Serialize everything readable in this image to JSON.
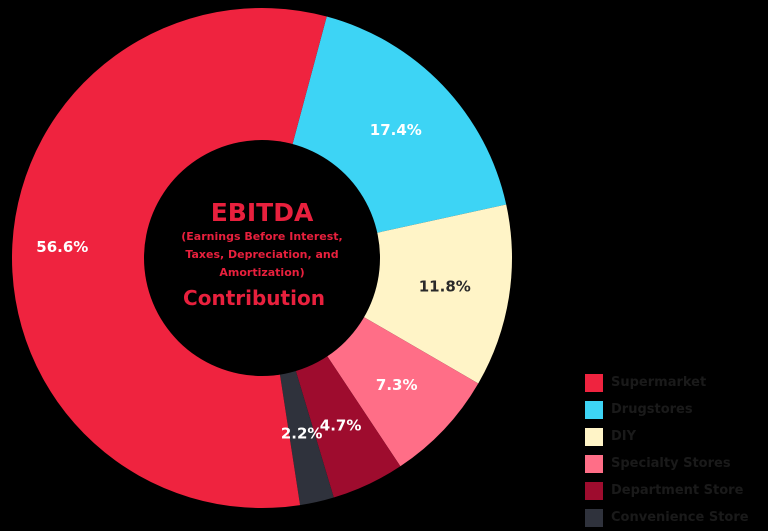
{
  "chart_data": {
    "type": "pie",
    "donut": true,
    "center_title": "EBITDA",
    "center_subtitle": [
      "(Earnings Before Interest,",
      "Taxes, Depreciation, and",
      "Amortization)"
    ],
    "center_footer": "Contribution",
    "slices": [
      {
        "name": "Supermarket",
        "value": 56.6,
        "label": "56.6%",
        "color": "#ef233f",
        "label_color": "#ffffff"
      },
      {
        "name": "Drugstores",
        "value": 17.4,
        "label": "17.4%",
        "color": "#3dd4f5",
        "label_color": "#ffffff"
      },
      {
        "name": "DIY",
        "value": 11.8,
        "label": "11.8%",
        "color": "#fff4c7",
        "label_color": "#2a2a2a"
      },
      {
        "name": "Specialty Stores",
        "value": 7.3,
        "label": "7.3%",
        "color": "#ff6e87",
        "label_color": "#ffffff"
      },
      {
        "name": "Department Store",
        "value": 4.7,
        "label": "4.7%",
        "color": "#9e0c2e",
        "label_color": "#ffffff"
      },
      {
        "name": "Convenience Store",
        "value": 2.2,
        "label": "2.2%",
        "color": "#2f323c",
        "label_color": "#ffffff"
      }
    ],
    "legend_position": "bottom-right"
  }
}
